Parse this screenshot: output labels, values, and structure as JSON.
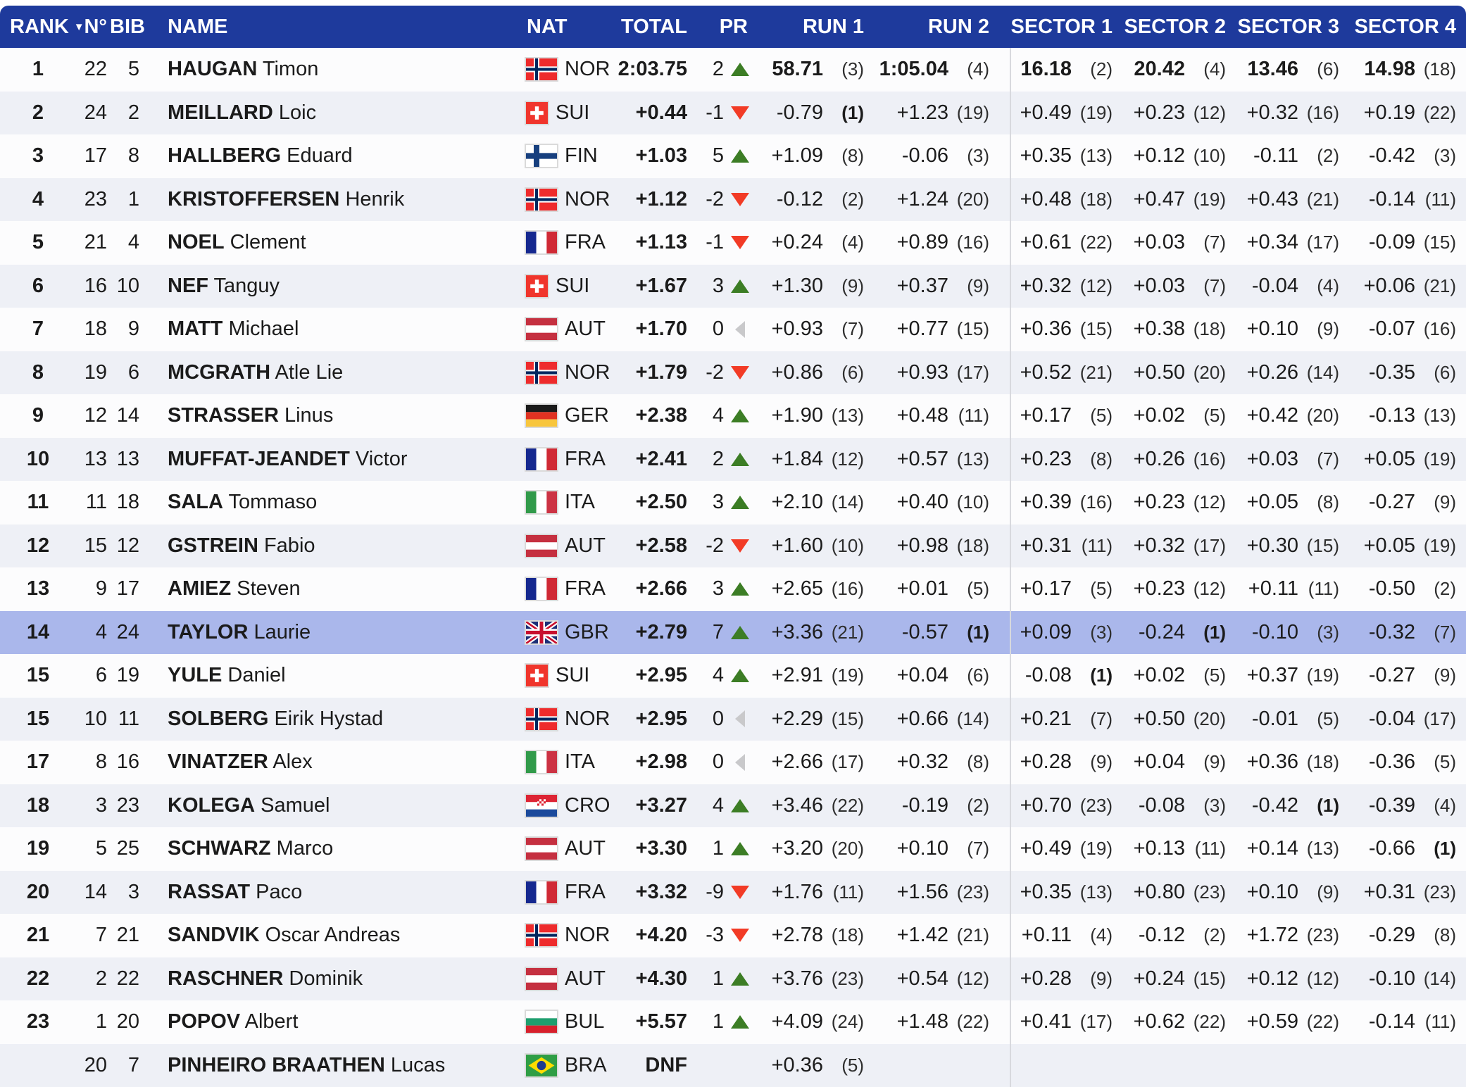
{
  "colors": {
    "header_bg": "#1e3a9c",
    "row_alt": "#eef0f6",
    "row_highlight": "#aab7eb",
    "up_green": "#3c7d25",
    "down_red": "#f23b26",
    "neutral_gray": "#c9c9cb"
  },
  "table": {
    "columns": [
      {
        "key": "rank",
        "label": "RANK",
        "sorted": "desc"
      },
      {
        "key": "n",
        "label": "N°"
      },
      {
        "key": "bib",
        "label": "BIB"
      },
      {
        "key": "name",
        "label": "NAME"
      },
      {
        "key": "nat",
        "label": "NAT"
      },
      {
        "key": "total",
        "label": "TOTAL"
      },
      {
        "key": "pr",
        "label": "PR"
      },
      {
        "key": "r1",
        "label": "RUN 1"
      },
      {
        "key": "r2",
        "label": "RUN 2"
      },
      {
        "key": "s1",
        "label": "SECTOR 1"
      },
      {
        "key": "s2",
        "label": "SECTOR 2"
      },
      {
        "key": "s3",
        "label": "SECTOR 3"
      },
      {
        "key": "s4",
        "label": "SECTOR 4"
      }
    ],
    "rows": [
      {
        "rank": "1",
        "n": "22",
        "bib": "5",
        "last": "HAUGAN",
        "first": "Timon",
        "nat": "NOR",
        "total": "2:03.75",
        "pr": {
          "v": "2",
          "d": "up"
        },
        "r1": {
          "v": "58.71",
          "r": "(3)"
        },
        "r2": {
          "v": "1:05.04",
          "r": "(4)"
        },
        "s1": {
          "v": "16.18",
          "r": "(2)"
        },
        "s2": {
          "v": "20.42",
          "r": "(4)"
        },
        "s3": {
          "v": "13.46",
          "r": "(6)"
        },
        "s4": {
          "v": "14.98",
          "r": "(18)"
        },
        "ldr": true
      },
      {
        "rank": "2",
        "n": "24",
        "bib": "2",
        "last": "MEILLARD",
        "first": "Loic",
        "nat": "SUI",
        "total": "+0.44",
        "pr": {
          "v": "-1",
          "d": "down"
        },
        "r1": {
          "v": "-0.79",
          "r": "(1)"
        },
        "r2": {
          "v": "+1.23",
          "r": "(19)"
        },
        "s1": {
          "v": "+0.49",
          "r": "(19)"
        },
        "s2": {
          "v": "+0.23",
          "r": "(12)"
        },
        "s3": {
          "v": "+0.32",
          "r": "(16)"
        },
        "s4": {
          "v": "+0.19",
          "r": "(22)"
        }
      },
      {
        "rank": "3",
        "n": "17",
        "bib": "8",
        "last": "HALLBERG",
        "first": "Eduard",
        "nat": "FIN",
        "total": "+1.03",
        "pr": {
          "v": "5",
          "d": "up"
        },
        "r1": {
          "v": "+1.09",
          "r": "(8)"
        },
        "r2": {
          "v": "-0.06",
          "r": "(3)"
        },
        "s1": {
          "v": "+0.35",
          "r": "(13)"
        },
        "s2": {
          "v": "+0.12",
          "r": "(10)"
        },
        "s3": {
          "v": "-0.11",
          "r": "(2)"
        },
        "s4": {
          "v": "-0.42",
          "r": "(3)"
        }
      },
      {
        "rank": "4",
        "n": "23",
        "bib": "1",
        "last": "KRISTOFFERSEN",
        "first": "Henrik",
        "nat": "NOR",
        "total": "+1.12",
        "pr": {
          "v": "-2",
          "d": "down"
        },
        "r1": {
          "v": "-0.12",
          "r": "(2)"
        },
        "r2": {
          "v": "+1.24",
          "r": "(20)"
        },
        "s1": {
          "v": "+0.48",
          "r": "(18)"
        },
        "s2": {
          "v": "+0.47",
          "r": "(19)"
        },
        "s3": {
          "v": "+0.43",
          "r": "(21)"
        },
        "s4": {
          "v": "-0.14",
          "r": "(11)"
        }
      },
      {
        "rank": "5",
        "n": "21",
        "bib": "4",
        "last": "NOEL",
        "first": "Clement",
        "nat": "FRA",
        "total": "+1.13",
        "pr": {
          "v": "-1",
          "d": "down"
        },
        "r1": {
          "v": "+0.24",
          "r": "(4)"
        },
        "r2": {
          "v": "+0.89",
          "r": "(16)"
        },
        "s1": {
          "v": "+0.61",
          "r": "(22)"
        },
        "s2": {
          "v": "+0.03",
          "r": "(7)"
        },
        "s3": {
          "v": "+0.34",
          "r": "(17)"
        },
        "s4": {
          "v": "-0.09",
          "r": "(15)"
        }
      },
      {
        "rank": "6",
        "n": "16",
        "bib": "10",
        "last": "NEF",
        "first": "Tanguy",
        "nat": "SUI",
        "total": "+1.67",
        "pr": {
          "v": "3",
          "d": "up"
        },
        "r1": {
          "v": "+1.30",
          "r": "(9)"
        },
        "r2": {
          "v": "+0.37",
          "r": "(9)"
        },
        "s1": {
          "v": "+0.32",
          "r": "(12)"
        },
        "s2": {
          "v": "+0.03",
          "r": "(7)"
        },
        "s3": {
          "v": "-0.04",
          "r": "(4)"
        },
        "s4": {
          "v": "+0.06",
          "r": "(21)"
        }
      },
      {
        "rank": "7",
        "n": "18",
        "bib": "9",
        "last": "MATT",
        "first": "Michael",
        "nat": "AUT",
        "total": "+1.70",
        "pr": {
          "v": "0",
          "d": "neutral"
        },
        "r1": {
          "v": "+0.93",
          "r": "(7)"
        },
        "r2": {
          "v": "+0.77",
          "r": "(15)"
        },
        "s1": {
          "v": "+0.36",
          "r": "(15)"
        },
        "s2": {
          "v": "+0.38",
          "r": "(18)"
        },
        "s3": {
          "v": "+0.10",
          "r": "(9)"
        },
        "s4": {
          "v": "-0.07",
          "r": "(16)"
        }
      },
      {
        "rank": "8",
        "n": "19",
        "bib": "6",
        "last": "MCGRATH",
        "first": "Atle Lie",
        "nat": "NOR",
        "total": "+1.79",
        "pr": {
          "v": "-2",
          "d": "down"
        },
        "r1": {
          "v": "+0.86",
          "r": "(6)"
        },
        "r2": {
          "v": "+0.93",
          "r": "(17)"
        },
        "s1": {
          "v": "+0.52",
          "r": "(21)"
        },
        "s2": {
          "v": "+0.50",
          "r": "(20)"
        },
        "s3": {
          "v": "+0.26",
          "r": "(14)"
        },
        "s4": {
          "v": "-0.35",
          "r": "(6)"
        }
      },
      {
        "rank": "9",
        "n": "12",
        "bib": "14",
        "last": "STRASSER",
        "first": "Linus",
        "nat": "GER",
        "total": "+2.38",
        "pr": {
          "v": "4",
          "d": "up"
        },
        "r1": {
          "v": "+1.90",
          "r": "(13)"
        },
        "r2": {
          "v": "+0.48",
          "r": "(11)"
        },
        "s1": {
          "v": "+0.17",
          "r": "(5)"
        },
        "s2": {
          "v": "+0.02",
          "r": "(5)"
        },
        "s3": {
          "v": "+0.42",
          "r": "(20)"
        },
        "s4": {
          "v": "-0.13",
          "r": "(13)"
        }
      },
      {
        "rank": "10",
        "n": "13",
        "bib": "13",
        "last": "MUFFAT-JEANDET",
        "first": "Victor",
        "nat": "FRA",
        "total": "+2.41",
        "pr": {
          "v": "2",
          "d": "up"
        },
        "r1": {
          "v": "+1.84",
          "r": "(12)"
        },
        "r2": {
          "v": "+0.57",
          "r": "(13)"
        },
        "s1": {
          "v": "+0.23",
          "r": "(8)"
        },
        "s2": {
          "v": "+0.26",
          "r": "(16)"
        },
        "s3": {
          "v": "+0.03",
          "r": "(7)"
        },
        "s4": {
          "v": "+0.05",
          "r": "(19)"
        }
      },
      {
        "rank": "11",
        "n": "11",
        "bib": "18",
        "last": "SALA",
        "first": "Tommaso",
        "nat": "ITA",
        "total": "+2.50",
        "pr": {
          "v": "3",
          "d": "up"
        },
        "r1": {
          "v": "+2.10",
          "r": "(14)"
        },
        "r2": {
          "v": "+0.40",
          "r": "(10)"
        },
        "s1": {
          "v": "+0.39",
          "r": "(16)"
        },
        "s2": {
          "v": "+0.23",
          "r": "(12)"
        },
        "s3": {
          "v": "+0.05",
          "r": "(8)"
        },
        "s4": {
          "v": "-0.27",
          "r": "(9)"
        }
      },
      {
        "rank": "12",
        "n": "15",
        "bib": "12",
        "last": "GSTREIN",
        "first": "Fabio",
        "nat": "AUT",
        "total": "+2.58",
        "pr": {
          "v": "-2",
          "d": "down"
        },
        "r1": {
          "v": "+1.60",
          "r": "(10)"
        },
        "r2": {
          "v": "+0.98",
          "r": "(18)"
        },
        "s1": {
          "v": "+0.31",
          "r": "(11)"
        },
        "s2": {
          "v": "+0.32",
          "r": "(17)"
        },
        "s3": {
          "v": "+0.30",
          "r": "(15)"
        },
        "s4": {
          "v": "+0.05",
          "r": "(19)"
        }
      },
      {
        "rank": "13",
        "n": "9",
        "bib": "17",
        "last": "AMIEZ",
        "first": "Steven",
        "nat": "FRA",
        "total": "+2.66",
        "pr": {
          "v": "3",
          "d": "up"
        },
        "r1": {
          "v": "+2.65",
          "r": "(16)"
        },
        "r2": {
          "v": "+0.01",
          "r": "(5)"
        },
        "s1": {
          "v": "+0.17",
          "r": "(5)"
        },
        "s2": {
          "v": "+0.23",
          "r": "(12)"
        },
        "s3": {
          "v": "+0.11",
          "r": "(11)"
        },
        "s4": {
          "v": "-0.50",
          "r": "(2)"
        }
      },
      {
        "rank": "14",
        "n": "4",
        "bib": "24",
        "last": "TAYLOR",
        "first": "Laurie",
        "nat": "GBR",
        "total": "+2.79",
        "pr": {
          "v": "7",
          "d": "up"
        },
        "r1": {
          "v": "+3.36",
          "r": "(21)"
        },
        "r2": {
          "v": "-0.57",
          "r": "(1)"
        },
        "s1": {
          "v": "+0.09",
          "r": "(3)"
        },
        "s2": {
          "v": "-0.24",
          "r": "(1)"
        },
        "s3": {
          "v": "-0.10",
          "r": "(3)"
        },
        "s4": {
          "v": "-0.32",
          "r": "(7)"
        },
        "hl": true
      },
      {
        "rank": "15",
        "n": "6",
        "bib": "19",
        "last": "YULE",
        "first": "Daniel",
        "nat": "SUI",
        "total": "+2.95",
        "pr": {
          "v": "4",
          "d": "up"
        },
        "r1": {
          "v": "+2.91",
          "r": "(19)"
        },
        "r2": {
          "v": "+0.04",
          "r": "(6)"
        },
        "s1": {
          "v": "-0.08",
          "r": "(1)"
        },
        "s2": {
          "v": "+0.02",
          "r": "(5)"
        },
        "s3": {
          "v": "+0.37",
          "r": "(19)"
        },
        "s4": {
          "v": "-0.27",
          "r": "(9)"
        }
      },
      {
        "rank": "15",
        "n": "10",
        "bib": "11",
        "last": "SOLBERG",
        "first": "Eirik Hystad",
        "nat": "NOR",
        "total": "+2.95",
        "pr": {
          "v": "0",
          "d": "neutral"
        },
        "r1": {
          "v": "+2.29",
          "r": "(15)"
        },
        "r2": {
          "v": "+0.66",
          "r": "(14)"
        },
        "s1": {
          "v": "+0.21",
          "r": "(7)"
        },
        "s2": {
          "v": "+0.50",
          "r": "(20)"
        },
        "s3": {
          "v": "-0.01",
          "r": "(5)"
        },
        "s4": {
          "v": "-0.04",
          "r": "(17)"
        }
      },
      {
        "rank": "17",
        "n": "8",
        "bib": "16",
        "last": "VINATZER",
        "first": "Alex",
        "nat": "ITA",
        "total": "+2.98",
        "pr": {
          "v": "0",
          "d": "neutral"
        },
        "r1": {
          "v": "+2.66",
          "r": "(17)"
        },
        "r2": {
          "v": "+0.32",
          "r": "(8)"
        },
        "s1": {
          "v": "+0.28",
          "r": "(9)"
        },
        "s2": {
          "v": "+0.04",
          "r": "(9)"
        },
        "s3": {
          "v": "+0.36",
          "r": "(18)"
        },
        "s4": {
          "v": "-0.36",
          "r": "(5)"
        }
      },
      {
        "rank": "18",
        "n": "3",
        "bib": "23",
        "last": "KOLEGA",
        "first": "Samuel",
        "nat": "CRO",
        "total": "+3.27",
        "pr": {
          "v": "4",
          "d": "up"
        },
        "r1": {
          "v": "+3.46",
          "r": "(22)"
        },
        "r2": {
          "v": "-0.19",
          "r": "(2)"
        },
        "s1": {
          "v": "+0.70",
          "r": "(23)"
        },
        "s2": {
          "v": "-0.08",
          "r": "(3)"
        },
        "s3": {
          "v": "-0.42",
          "r": "(1)"
        },
        "s4": {
          "v": "-0.39",
          "r": "(4)"
        }
      },
      {
        "rank": "19",
        "n": "5",
        "bib": "25",
        "last": "SCHWARZ",
        "first": "Marco",
        "nat": "AUT",
        "total": "+3.30",
        "pr": {
          "v": "1",
          "d": "up"
        },
        "r1": {
          "v": "+3.20",
          "r": "(20)"
        },
        "r2": {
          "v": "+0.10",
          "r": "(7)"
        },
        "s1": {
          "v": "+0.49",
          "r": "(19)"
        },
        "s2": {
          "v": "+0.13",
          "r": "(11)"
        },
        "s3": {
          "v": "+0.14",
          "r": "(13)"
        },
        "s4": {
          "v": "-0.66",
          "r": "(1)"
        }
      },
      {
        "rank": "20",
        "n": "14",
        "bib": "3",
        "last": "RASSAT",
        "first": "Paco",
        "nat": "FRA",
        "total": "+3.32",
        "pr": {
          "v": "-9",
          "d": "down"
        },
        "r1": {
          "v": "+1.76",
          "r": "(11)"
        },
        "r2": {
          "v": "+1.56",
          "r": "(23)"
        },
        "s1": {
          "v": "+0.35",
          "r": "(13)"
        },
        "s2": {
          "v": "+0.80",
          "r": "(23)"
        },
        "s3": {
          "v": "+0.10",
          "r": "(9)"
        },
        "s4": {
          "v": "+0.31",
          "r": "(23)"
        }
      },
      {
        "rank": "21",
        "n": "7",
        "bib": "21",
        "last": "SANDVIK",
        "first": "Oscar Andreas",
        "nat": "NOR",
        "total": "+4.20",
        "pr": {
          "v": "-3",
          "d": "down"
        },
        "r1": {
          "v": "+2.78",
          "r": "(18)"
        },
        "r2": {
          "v": "+1.42",
          "r": "(21)"
        },
        "s1": {
          "v": "+0.11",
          "r": "(4)"
        },
        "s2": {
          "v": "-0.12",
          "r": "(2)"
        },
        "s3": {
          "v": "+1.72",
          "r": "(23)"
        },
        "s4": {
          "v": "-0.29",
          "r": "(8)"
        }
      },
      {
        "rank": "22",
        "n": "2",
        "bib": "22",
        "last": "RASCHNER",
        "first": "Dominik",
        "nat": "AUT",
        "total": "+4.30",
        "pr": {
          "v": "1",
          "d": "up"
        },
        "r1": {
          "v": "+3.76",
          "r": "(23)"
        },
        "r2": {
          "v": "+0.54",
          "r": "(12)"
        },
        "s1": {
          "v": "+0.28",
          "r": "(9)"
        },
        "s2": {
          "v": "+0.24",
          "r": "(15)"
        },
        "s3": {
          "v": "+0.12",
          "r": "(12)"
        },
        "s4": {
          "v": "-0.10",
          "r": "(14)"
        }
      },
      {
        "rank": "23",
        "n": "1",
        "bib": "20",
        "last": "POPOV",
        "first": "Albert",
        "nat": "BUL",
        "total": "+5.57",
        "pr": {
          "v": "1",
          "d": "up"
        },
        "r1": {
          "v": "+4.09",
          "r": "(24)"
        },
        "r2": {
          "v": "+1.48",
          "r": "(22)"
        },
        "s1": {
          "v": "+0.41",
          "r": "(17)"
        },
        "s2": {
          "v": "+0.62",
          "r": "(22)"
        },
        "s3": {
          "v": "+0.59",
          "r": "(22)"
        },
        "s4": {
          "v": "-0.14",
          "r": "(11)"
        }
      },
      {
        "rank": "",
        "n": "20",
        "bib": "7",
        "last": "PINHEIRO BRAATHEN",
        "first": "Lucas",
        "nat": "BRA",
        "total": "DNF",
        "pr": null,
        "r1": {
          "v": "+0.36",
          "r": "(5)"
        },
        "r2": null,
        "s1": null,
        "s2": null,
        "s3": null,
        "s4": null
      }
    ]
  }
}
